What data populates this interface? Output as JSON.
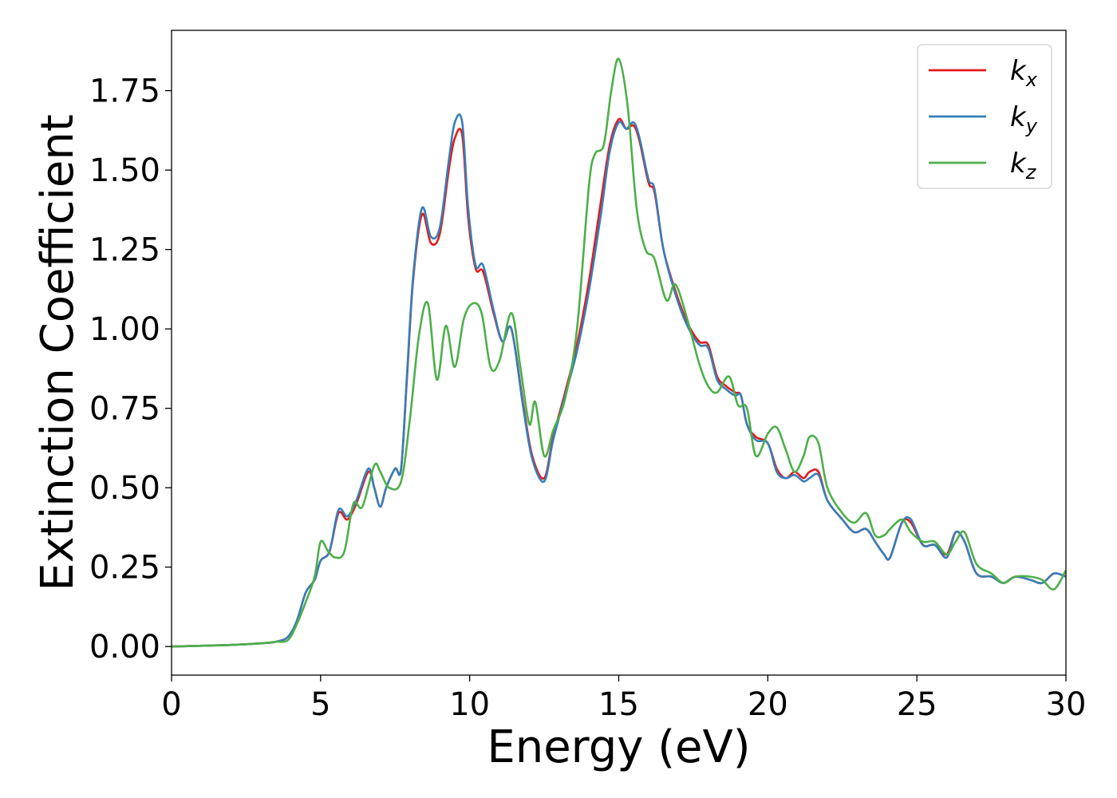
{
  "chart_data": {
    "type": "line",
    "title": "",
    "xlabel": "Energy (eV)",
    "ylabel": "Extinction Coefficient",
    "xlim": [
      0,
      30
    ],
    "ylim": [
      -0.09,
      1.94
    ],
    "xticks": [
      0,
      5,
      10,
      15,
      20,
      25,
      30
    ],
    "xtick_labels": [
      "0",
      "5",
      "10",
      "15",
      "20",
      "25",
      "30"
    ],
    "yticks": [
      0,
      0.25,
      0.5,
      0.75,
      1.0,
      1.25,
      1.5,
      1.75
    ],
    "ytick_labels": [
      "0.00",
      "0.25",
      "0.50",
      "0.75",
      "1.00",
      "1.25",
      "1.50",
      "1.75"
    ],
    "grid": false,
    "legend_position": "top-right",
    "series": [
      {
        "name": "k",
        "subscript": "x",
        "color": "#e41a1c",
        "x": [
          0,
          2,
          3,
          3.5,
          3.9,
          4.2,
          4.5,
          4.8,
          5.0,
          5.3,
          5.6,
          5.9,
          6.2,
          6.6,
          6.8,
          7.0,
          7.2,
          7.5,
          7.7,
          7.9,
          8.1,
          8.4,
          8.7,
          9.0,
          9.3,
          9.5,
          9.75,
          9.95,
          10.2,
          10.45,
          10.8,
          11.1,
          11.4,
          11.8,
          12.1,
          12.5,
          12.8,
          13.2,
          13.6,
          14.0,
          14.4,
          14.7,
          15.0,
          15.25,
          15.5,
          15.7,
          16.0,
          16.2,
          16.5,
          16.9,
          17.3,
          17.7,
          18.0,
          18.3,
          18.6,
          18.9,
          19.1,
          19.3,
          19.6,
          20.0,
          20.3,
          20.6,
          20.9,
          21.2,
          21.4,
          21.7,
          22.0,
          22.5,
          22.9,
          23.3,
          23.6,
          23.9,
          24.1,
          24.5,
          24.8,
          25.2,
          25.6,
          26.0,
          26.3,
          26.6,
          27.0,
          27.5,
          27.9,
          28.3,
          28.8,
          29.2,
          29.6,
          30.0
        ],
        "y": [
          0,
          0.005,
          0.01,
          0.015,
          0.03,
          0.08,
          0.17,
          0.21,
          0.27,
          0.3,
          0.42,
          0.4,
          0.45,
          0.55,
          0.5,
          0.44,
          0.5,
          0.56,
          0.56,
          0.85,
          1.15,
          1.36,
          1.27,
          1.3,
          1.5,
          1.6,
          1.61,
          1.35,
          1.19,
          1.18,
          1.05,
          0.96,
          1.0,
          0.76,
          0.6,
          0.53,
          0.66,
          0.8,
          0.95,
          1.15,
          1.4,
          1.58,
          1.66,
          1.63,
          1.64,
          1.59,
          1.46,
          1.43,
          1.25,
          1.12,
          1.02,
          0.96,
          0.95,
          0.85,
          0.82,
          0.8,
          0.79,
          0.7,
          0.66,
          0.64,
          0.56,
          0.53,
          0.55,
          0.53,
          0.55,
          0.55,
          0.46,
          0.4,
          0.36,
          0.37,
          0.33,
          0.29,
          0.28,
          0.39,
          0.39,
          0.32,
          0.32,
          0.29,
          0.36,
          0.33,
          0.23,
          0.22,
          0.2,
          0.22,
          0.21,
          0.2,
          0.23,
          0.22
        ]
      },
      {
        "name": "k",
        "subscript": "y",
        "color": "#377eb8",
        "x": [
          0,
          2,
          3,
          3.5,
          3.9,
          4.2,
          4.5,
          4.8,
          5.0,
          5.3,
          5.6,
          5.9,
          6.2,
          6.6,
          6.8,
          7.0,
          7.2,
          7.5,
          7.7,
          7.9,
          8.1,
          8.4,
          8.7,
          9.0,
          9.3,
          9.5,
          9.75,
          9.95,
          10.2,
          10.45,
          10.8,
          11.1,
          11.4,
          11.8,
          12.1,
          12.5,
          12.8,
          13.2,
          13.6,
          14.0,
          14.4,
          14.7,
          15.0,
          15.25,
          15.5,
          15.7,
          16.0,
          16.2,
          16.5,
          16.9,
          17.3,
          17.7,
          18.0,
          18.3,
          18.6,
          18.9,
          19.1,
          19.3,
          19.6,
          20.0,
          20.3,
          20.6,
          20.9,
          21.2,
          21.4,
          21.7,
          22.0,
          22.5,
          22.9,
          23.3,
          23.6,
          23.9,
          24.1,
          24.5,
          24.8,
          25.2,
          25.6,
          26.0,
          26.3,
          26.6,
          27.0,
          27.5,
          27.9,
          28.3,
          28.8,
          29.2,
          29.6,
          30.0
        ],
        "y": [
          0,
          0.005,
          0.01,
          0.015,
          0.03,
          0.08,
          0.17,
          0.21,
          0.27,
          0.3,
          0.43,
          0.41,
          0.46,
          0.56,
          0.5,
          0.44,
          0.5,
          0.56,
          0.56,
          0.86,
          1.16,
          1.38,
          1.29,
          1.32,
          1.53,
          1.65,
          1.65,
          1.38,
          1.2,
          1.2,
          1.06,
          0.96,
          1.0,
          0.75,
          0.59,
          0.52,
          0.65,
          0.79,
          0.93,
          1.12,
          1.36,
          1.56,
          1.65,
          1.63,
          1.65,
          1.6,
          1.47,
          1.44,
          1.25,
          1.11,
          1.01,
          0.95,
          0.94,
          0.84,
          0.81,
          0.79,
          0.79,
          0.7,
          0.65,
          0.64,
          0.55,
          0.53,
          0.54,
          0.52,
          0.53,
          0.54,
          0.46,
          0.4,
          0.36,
          0.37,
          0.33,
          0.29,
          0.28,
          0.39,
          0.4,
          0.32,
          0.32,
          0.28,
          0.36,
          0.33,
          0.23,
          0.22,
          0.2,
          0.22,
          0.21,
          0.2,
          0.23,
          0.22
        ]
      },
      {
        "name": "k",
        "subscript": "z",
        "color": "#4daf4a",
        "x": [
          0,
          2,
          3,
          3.5,
          3.9,
          4.2,
          4.5,
          4.8,
          5.0,
          5.25,
          5.5,
          5.8,
          6.1,
          6.4,
          6.8,
          7.0,
          7.3,
          7.7,
          8.0,
          8.3,
          8.6,
          8.9,
          9.2,
          9.5,
          9.8,
          10.1,
          10.4,
          10.7,
          11.0,
          11.4,
          11.7,
          12.0,
          12.2,
          12.5,
          12.8,
          13.2,
          13.6,
          14.0,
          14.2,
          14.5,
          14.75,
          15.0,
          15.3,
          15.6,
          15.9,
          16.2,
          16.6,
          16.9,
          17.3,
          17.7,
          18.0,
          18.3,
          18.7,
          19.0,
          19.3,
          19.6,
          20.0,
          20.3,
          20.6,
          20.9,
          21.2,
          21.4,
          21.7,
          22.0,
          22.5,
          22.9,
          23.3,
          23.6,
          23.9,
          24.1,
          24.5,
          24.8,
          25.2,
          25.6,
          26.0,
          26.3,
          26.6,
          27.0,
          27.5,
          27.9,
          28.3,
          28.8,
          29.2,
          29.6,
          30.0
        ],
        "y": [
          0,
          0.005,
          0.01,
          0.015,
          0.02,
          0.07,
          0.14,
          0.22,
          0.33,
          0.3,
          0.28,
          0.3,
          0.45,
          0.44,
          0.57,
          0.55,
          0.5,
          0.52,
          0.72,
          0.98,
          1.08,
          0.84,
          1.01,
          0.88,
          1.03,
          1.08,
          1.05,
          0.88,
          0.9,
          1.05,
          0.88,
          0.7,
          0.77,
          0.6,
          0.68,
          0.78,
          1.0,
          1.45,
          1.55,
          1.58,
          1.75,
          1.85,
          1.7,
          1.38,
          1.25,
          1.22,
          1.09,
          1.14,
          1.03,
          0.89,
          0.82,
          0.8,
          0.85,
          0.76,
          0.75,
          0.6,
          0.67,
          0.69,
          0.62,
          0.55,
          0.6,
          0.66,
          0.64,
          0.5,
          0.42,
          0.39,
          0.42,
          0.35,
          0.35,
          0.37,
          0.4,
          0.36,
          0.33,
          0.33,
          0.29,
          0.33,
          0.36,
          0.26,
          0.23,
          0.2,
          0.22,
          0.22,
          0.21,
          0.18,
          0.24
        ]
      }
    ]
  }
}
